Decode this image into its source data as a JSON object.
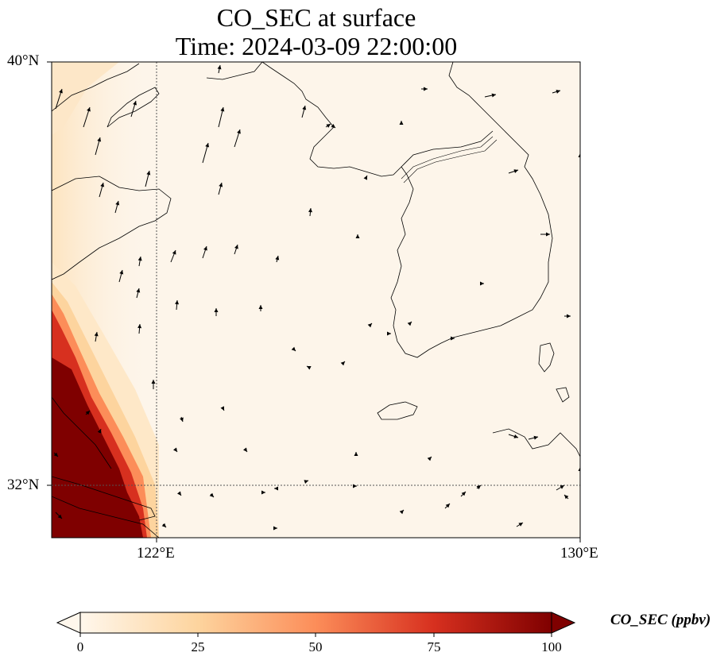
{
  "title": "CO_SEC at surface",
  "subtitle": "Time: 2024-03-09 22:00:00",
  "axes": {
    "lat_labels": [
      "40°N",
      "32°N"
    ],
    "lon_labels": [
      "122°E",
      "130°E"
    ]
  },
  "colorbar": {
    "label": "CO_SEC (ppbv)",
    "ticks": [
      "0",
      "25",
      "50",
      "75",
      "100"
    ],
    "range": [
      0,
      100
    ],
    "colormap": "OrRd",
    "extend": "both"
  },
  "chart_data": {
    "type": "heatmap",
    "title": "CO_SEC at surface",
    "subtitle": "Time: 2024-03-09 22:00:00",
    "variable": "CO_SEC",
    "units": "ppbv",
    "lon_range": [
      120,
      130
    ],
    "lat_range": [
      31,
      40
    ],
    "gridlines_lon": [
      122
    ],
    "gridlines_lat": [
      32
    ],
    "colorscale": {
      "min": 0,
      "max": 100,
      "colors": [
        "#fff7ec",
        "#fdd49e",
        "#fc8d59",
        "#d7301f",
        "#7f0000"
      ]
    },
    "high_concentration_region": "western edge near 120-122°E, 31-34°N (>100 ppbv)",
    "overlay": "surface wind vectors"
  }
}
